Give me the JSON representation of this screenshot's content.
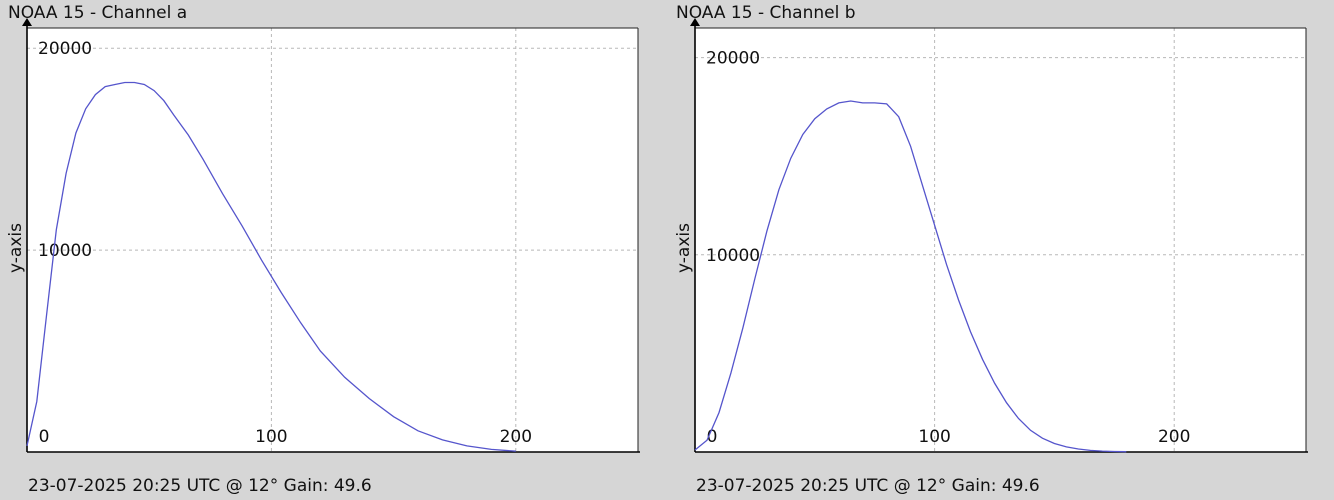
{
  "chart_data": [
    {
      "type": "line",
      "title": "NOAA 15 - Channel a",
      "footer": "23-07-2025 20:25 UTC @ 12° Gain: 49.6",
      "ylabel": "y-axis",
      "xlabel": "",
      "xlim": [
        0,
        250
      ],
      "ylim": [
        0,
        21000
      ],
      "x_ticks": [
        0,
        100,
        200
      ],
      "y_ticks": [
        10000,
        20000
      ],
      "grid": true,
      "color": "#5555cc",
      "series": [
        {
          "x": [
            0,
            4,
            8,
            12,
            16,
            20,
            24,
            28,
            32,
            36,
            40,
            44,
            48,
            52,
            56,
            60,
            66,
            72,
            80,
            88,
            96,
            104,
            112,
            120,
            130,
            140,
            150,
            160,
            170,
            180,
            190,
            200
          ],
          "values": [
            300,
            2500,
            6800,
            11000,
            13800,
            15800,
            17000,
            17700,
            18100,
            18200,
            18300,
            18300,
            18200,
            17900,
            17400,
            16700,
            15700,
            14500,
            12800,
            11200,
            9500,
            7900,
            6400,
            5000,
            3700,
            2650,
            1750,
            1050,
            600,
            300,
            130,
            40
          ]
        }
      ]
    },
    {
      "type": "line",
      "title": "NOAA 15 - Channel b",
      "footer": "23-07-2025 20:25 UTC @ 12° Gain: 49.6",
      "ylabel": "y-axis",
      "xlabel": "",
      "xlim": [
        0,
        255
      ],
      "ylim": [
        0,
        21500
      ],
      "x_ticks": [
        0,
        100,
        200
      ],
      "y_ticks": [
        10000,
        20000
      ],
      "grid": true,
      "color": "#5555cc",
      "series": [
        {
          "x": [
            0,
            5,
            10,
            15,
            20,
            25,
            30,
            35,
            40,
            45,
            50,
            55,
            60,
            65,
            70,
            75,
            80,
            85,
            90,
            95,
            100,
            105,
            110,
            115,
            120,
            125,
            130,
            135,
            140,
            145,
            150,
            155,
            160,
            165,
            170,
            175,
            180
          ],
          "values": [
            100,
            600,
            2000,
            4000,
            6300,
            8800,
            11200,
            13300,
            14900,
            16100,
            16900,
            17400,
            17700,
            17800,
            17700,
            17700,
            17650,
            17000,
            15500,
            13500,
            11500,
            9500,
            7700,
            6100,
            4700,
            3500,
            2500,
            1700,
            1100,
            700,
            430,
            260,
            150,
            80,
            45,
            25,
            15
          ]
        }
      ]
    }
  ]
}
